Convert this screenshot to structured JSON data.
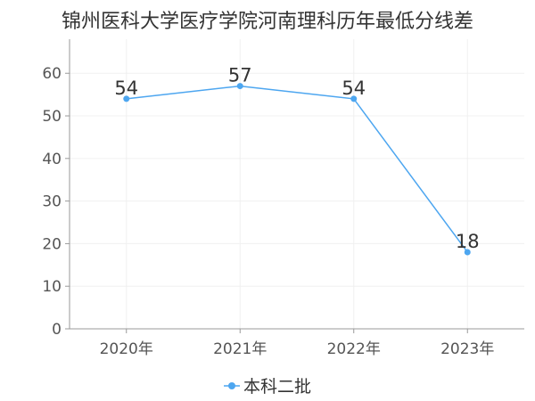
{
  "chart_data": {
    "type": "line",
    "title": "锦州医科大学医疗学院河南理科历年最低分线差",
    "categories": [
      "2020年",
      "2021年",
      "2022年",
      "2023年"
    ],
    "series": [
      {
        "name": "本科二批",
        "values": [
          54,
          57,
          54,
          18
        ],
        "color": "#4da6f0"
      }
    ],
    "ylim": [
      0,
      68
    ],
    "yticks": [
      0,
      10,
      20,
      30,
      40,
      50,
      60
    ],
    "grid": true,
    "legend_position": "bottom-center",
    "colors": {
      "axis": "#999999",
      "grid": "#f0f0f0",
      "line": "#4da6f0",
      "point": "#4da6f0"
    }
  }
}
